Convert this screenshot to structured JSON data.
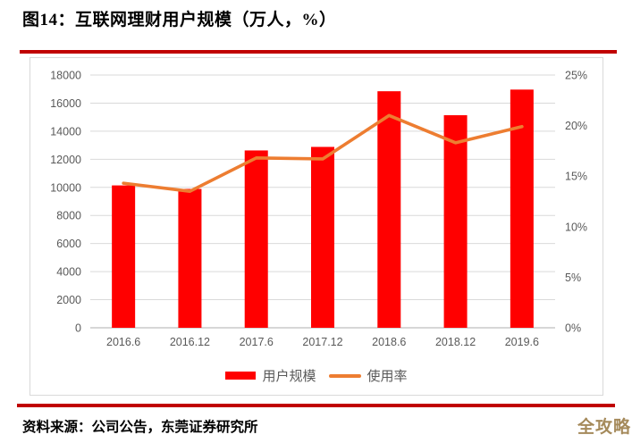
{
  "figure": {
    "title": "图14：互联网理财用户规模（万人，%）",
    "source": "资料来源：公司公告，东莞证券研究所",
    "watermark": "全攻略"
  },
  "colors": {
    "bar": "#FF0000",
    "line": "#ED7D31",
    "rule": "#C00000",
    "gridline": "#D9D9D9",
    "axis_line": "#BFBFBF",
    "tick_text": "#595959",
    "chart_border": "#D9D9D9",
    "watermark": "#A58A5B"
  },
  "chart_data": {
    "type": "bar",
    "subtype": "bar-and-line-combo",
    "title": "图14：互联网理财用户规模（万人，%）",
    "categories": [
      "2016.6",
      "2016.12",
      "2017.6",
      "2017.12",
      "2018.6",
      "2018.12",
      "2019.6"
    ],
    "series": [
      {
        "name": "用户规模",
        "type": "bar",
        "axis": "left",
        "color": "#FF0000",
        "values": [
          10139,
          9890,
          12629,
          12881,
          16845,
          15138,
          16963
        ]
      },
      {
        "name": "使用率",
        "type": "line",
        "axis": "right",
        "color": "#ED7D31",
        "values": [
          14.3,
          13.5,
          16.8,
          16.7,
          21.0,
          18.3,
          19.9
        ]
      }
    ],
    "left_axis": {
      "min": 0,
      "max": 18000,
      "step": 2000,
      "ticks": [
        "0",
        "2000",
        "4000",
        "6000",
        "8000",
        "10000",
        "12000",
        "14000",
        "16000",
        "18000"
      ]
    },
    "right_axis": {
      "min": 0,
      "max": 25,
      "step": 5,
      "ticks": [
        "0%",
        "5%",
        "10%",
        "15%",
        "20%",
        "25%"
      ]
    },
    "grid": true,
    "legend_position": "bottom",
    "legend": [
      {
        "label": "用户规模",
        "swatch": "bar"
      },
      {
        "label": "使用率",
        "swatch": "line"
      }
    ]
  }
}
